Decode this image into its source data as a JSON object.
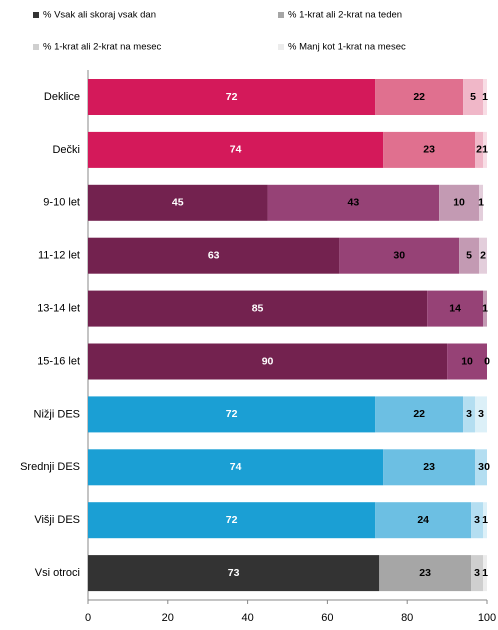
{
  "chart_data": {
    "type": "stacked_bar_horizontal",
    "categories": [
      "Deklice",
      "Dečki",
      "9-10 let",
      "11-12 let",
      "13-14 let",
      "15-16 let",
      "Nižji DES",
      "Srednji DES",
      "Višji DES",
      "Vsi otroci"
    ],
    "series": [
      {
        "name": "% Vsak ali skoraj vsak dan",
        "color": "#333333",
        "values": [
          72,
          74,
          45,
          63,
          85,
          90,
          72,
          74,
          72,
          73
        ],
        "bar_colors": [
          "#d4195a",
          "#d4195a",
          "#73224f",
          "#73224f",
          "#73224f",
          "#73224f",
          "#1b9fd4",
          "#1b9fd4",
          "#1b9fd4",
          "#333333"
        ]
      },
      {
        "name": "% 1-krat ali 2-krat na teden",
        "color": "#a6a6a6",
        "values": [
          22,
          23,
          43,
          30,
          14,
          10,
          22,
          23,
          24,
          23
        ],
        "bar_colors": [
          "#e0708f",
          "#e0708f",
          "#964276",
          "#964276",
          "#964276",
          "#964276",
          "#6cbfe3",
          "#6cbfe3",
          "#6cbfe3",
          "#a6a6a6"
        ]
      },
      {
        "name": "% 1-krat ali 2-krat na mesec",
        "color": "#cfcfcf",
        "values": [
          5,
          2,
          10,
          5,
          1,
          0,
          3,
          3,
          3,
          3
        ],
        "bar_colors": [
          "#f0b7c8",
          "#f0b7c8",
          "#c39ab3",
          "#c39ab3",
          "#c39ab3",
          "#c39ab3",
          "#b4def1",
          "#b4def1",
          "#b4def1",
          "#cfcfcf"
        ]
      },
      {
        "name": "% Manj kot 1-krat na mesec",
        "color": "#ececec",
        "values": [
          1,
          1,
          1,
          2,
          null,
          null,
          3,
          0,
          1,
          1
        ],
        "bar_colors": [
          "#f8dde5",
          "#f8dde5",
          "#e3cedb",
          "#e3cedb",
          "#e3cedb",
          "#e3cedb",
          "#dcf0f8",
          "#dcf0f8",
          "#dcf0f8",
          "#ececec"
        ]
      }
    ],
    "xlim": [
      0,
      100
    ],
    "xticks": [
      0,
      20,
      40,
      60,
      80,
      100
    ]
  }
}
